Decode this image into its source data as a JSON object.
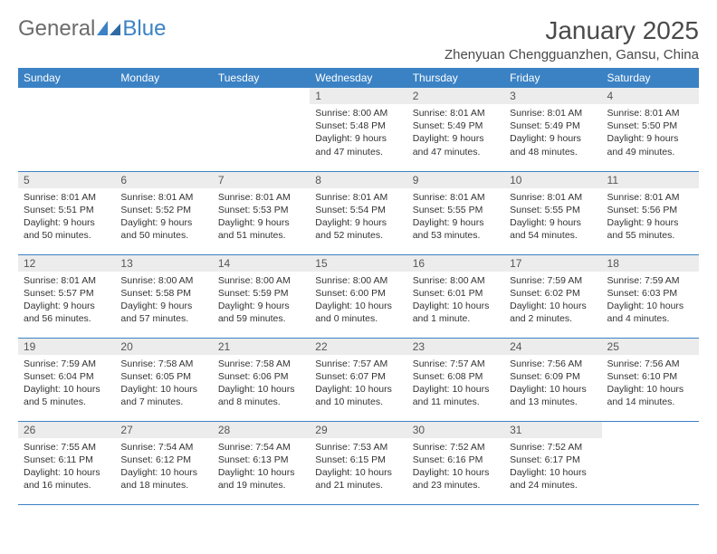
{
  "brand": {
    "part1": "General",
    "part2": "Blue"
  },
  "title": "January 2025",
  "location": "Zhenyuan Chengguanzhen, Gansu, China",
  "colors": {
    "header_bg": "#3b82c4",
    "header_text": "#ffffff",
    "daynum_bg": "#ececec",
    "rule": "#3b82c4",
    "brand_gray": "#6b6b6b",
    "brand_blue": "#3b82c4"
  },
  "weekdays": [
    "Sunday",
    "Monday",
    "Tuesday",
    "Wednesday",
    "Thursday",
    "Friday",
    "Saturday"
  ],
  "weeks": [
    [
      null,
      null,
      null,
      {
        "n": "1",
        "sr": "8:00 AM",
        "ss": "5:48 PM",
        "dl": "9 hours and 47 minutes."
      },
      {
        "n": "2",
        "sr": "8:01 AM",
        "ss": "5:49 PM",
        "dl": "9 hours and 47 minutes."
      },
      {
        "n": "3",
        "sr": "8:01 AM",
        "ss": "5:49 PM",
        "dl": "9 hours and 48 minutes."
      },
      {
        "n": "4",
        "sr": "8:01 AM",
        "ss": "5:50 PM",
        "dl": "9 hours and 49 minutes."
      }
    ],
    [
      {
        "n": "5",
        "sr": "8:01 AM",
        "ss": "5:51 PM",
        "dl": "9 hours and 50 minutes."
      },
      {
        "n": "6",
        "sr": "8:01 AM",
        "ss": "5:52 PM",
        "dl": "9 hours and 50 minutes."
      },
      {
        "n": "7",
        "sr": "8:01 AM",
        "ss": "5:53 PM",
        "dl": "9 hours and 51 minutes."
      },
      {
        "n": "8",
        "sr": "8:01 AM",
        "ss": "5:54 PM",
        "dl": "9 hours and 52 minutes."
      },
      {
        "n": "9",
        "sr": "8:01 AM",
        "ss": "5:55 PM",
        "dl": "9 hours and 53 minutes."
      },
      {
        "n": "10",
        "sr": "8:01 AM",
        "ss": "5:55 PM",
        "dl": "9 hours and 54 minutes."
      },
      {
        "n": "11",
        "sr": "8:01 AM",
        "ss": "5:56 PM",
        "dl": "9 hours and 55 minutes."
      }
    ],
    [
      {
        "n": "12",
        "sr": "8:01 AM",
        "ss": "5:57 PM",
        "dl": "9 hours and 56 minutes."
      },
      {
        "n": "13",
        "sr": "8:00 AM",
        "ss": "5:58 PM",
        "dl": "9 hours and 57 minutes."
      },
      {
        "n": "14",
        "sr": "8:00 AM",
        "ss": "5:59 PM",
        "dl": "9 hours and 59 minutes."
      },
      {
        "n": "15",
        "sr": "8:00 AM",
        "ss": "6:00 PM",
        "dl": "10 hours and 0 minutes."
      },
      {
        "n": "16",
        "sr": "8:00 AM",
        "ss": "6:01 PM",
        "dl": "10 hours and 1 minute."
      },
      {
        "n": "17",
        "sr": "7:59 AM",
        "ss": "6:02 PM",
        "dl": "10 hours and 2 minutes."
      },
      {
        "n": "18",
        "sr": "7:59 AM",
        "ss": "6:03 PM",
        "dl": "10 hours and 4 minutes."
      }
    ],
    [
      {
        "n": "19",
        "sr": "7:59 AM",
        "ss": "6:04 PM",
        "dl": "10 hours and 5 minutes."
      },
      {
        "n": "20",
        "sr": "7:58 AM",
        "ss": "6:05 PM",
        "dl": "10 hours and 7 minutes."
      },
      {
        "n": "21",
        "sr": "7:58 AM",
        "ss": "6:06 PM",
        "dl": "10 hours and 8 minutes."
      },
      {
        "n": "22",
        "sr": "7:57 AM",
        "ss": "6:07 PM",
        "dl": "10 hours and 10 minutes."
      },
      {
        "n": "23",
        "sr": "7:57 AM",
        "ss": "6:08 PM",
        "dl": "10 hours and 11 minutes."
      },
      {
        "n": "24",
        "sr": "7:56 AM",
        "ss": "6:09 PM",
        "dl": "10 hours and 13 minutes."
      },
      {
        "n": "25",
        "sr": "7:56 AM",
        "ss": "6:10 PM",
        "dl": "10 hours and 14 minutes."
      }
    ],
    [
      {
        "n": "26",
        "sr": "7:55 AM",
        "ss": "6:11 PM",
        "dl": "10 hours and 16 minutes."
      },
      {
        "n": "27",
        "sr": "7:54 AM",
        "ss": "6:12 PM",
        "dl": "10 hours and 18 minutes."
      },
      {
        "n": "28",
        "sr": "7:54 AM",
        "ss": "6:13 PM",
        "dl": "10 hours and 19 minutes."
      },
      {
        "n": "29",
        "sr": "7:53 AM",
        "ss": "6:15 PM",
        "dl": "10 hours and 21 minutes."
      },
      {
        "n": "30",
        "sr": "7:52 AM",
        "ss": "6:16 PM",
        "dl": "10 hours and 23 minutes."
      },
      {
        "n": "31",
        "sr": "7:52 AM",
        "ss": "6:17 PM",
        "dl": "10 hours and 24 minutes."
      },
      null
    ]
  ],
  "labels": {
    "sunrise": "Sunrise: ",
    "sunset": "Sunset: ",
    "daylight": "Daylight: "
  }
}
